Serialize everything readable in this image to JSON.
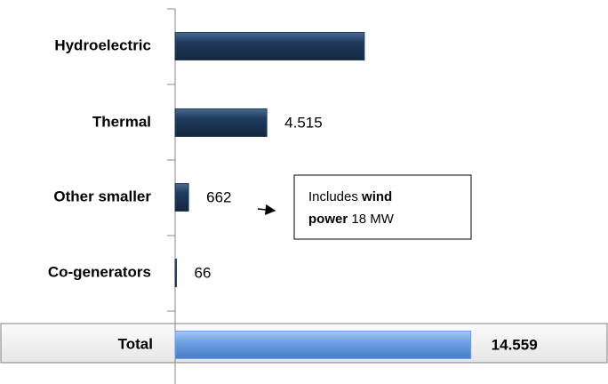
{
  "chart_data": {
    "type": "bar",
    "orientation": "horizontal",
    "categories": [
      "Hydroelectric",
      "Thermal",
      "Other smaller",
      "Co-generators",
      "Total"
    ],
    "values": [
      9316,
      4515,
      662,
      66,
      14559
    ],
    "value_labels": [
      null,
      "4.515",
      "662",
      "66",
      "14.559"
    ],
    "colors": [
      "#1f3b5e",
      "#1f3b5e",
      "#1f3b5e",
      "#1f3b5e",
      "#6d9fe3"
    ],
    "xlim": [
      0,
      20000
    ],
    "annotation": [
      "Includes ",
      "wind power",
      " 18 MW"
    ]
  }
}
